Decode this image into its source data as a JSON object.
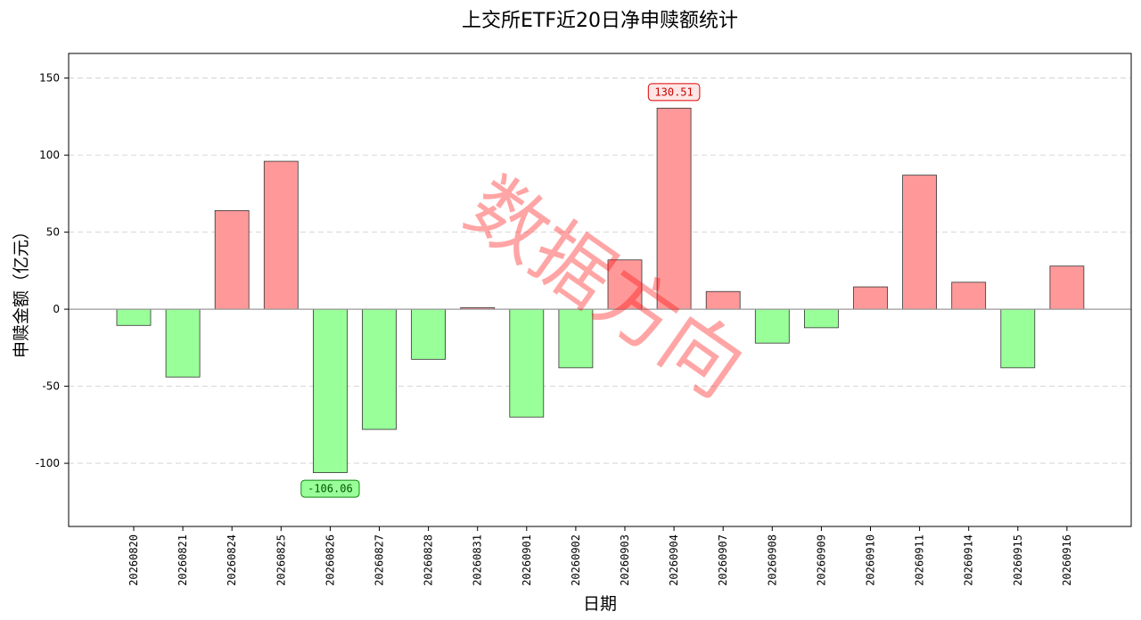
{
  "chart_data": {
    "type": "bar",
    "title": "上交所ETF近20日净申赎额统计",
    "xlabel": "日期",
    "ylabel": "申赎金额（亿元）",
    "ylim": [
      -141,
      166
    ],
    "yticks": [
      -100,
      -50,
      0,
      50,
      100,
      150
    ],
    "grid": "horizontal dashed",
    "categories": [
      "20260820",
      "20260821",
      "20260824",
      "20260825",
      "20260826",
      "20260827",
      "20260828",
      "20260831",
      "20260901",
      "20260902",
      "20260903",
      "20260904",
      "20260907",
      "20260908",
      "20260909",
      "20260910",
      "20260911",
      "20260914",
      "20260915",
      "20260916"
    ],
    "values": [
      -10.5,
      -44,
      64,
      96,
      -106.06,
      -78,
      -32.5,
      1,
      -70,
      -38,
      32,
      130.51,
      11.5,
      -22,
      -12,
      14.5,
      87,
      17.5,
      -38,
      28
    ],
    "colors": {
      "positive": "#ff9999",
      "negative": "#99ff99",
      "edge": "#333333",
      "max_edge": "#dd0000",
      "min_edge": "#118811"
    },
    "annotations": [
      {
        "category": "20260904",
        "value": 130.51,
        "label": "130.51",
        "kind": "max"
      },
      {
        "category": "20260826",
        "value": -106.06,
        "label": "-106.06",
        "kind": "min"
      }
    ],
    "watermark": "数据方向"
  }
}
